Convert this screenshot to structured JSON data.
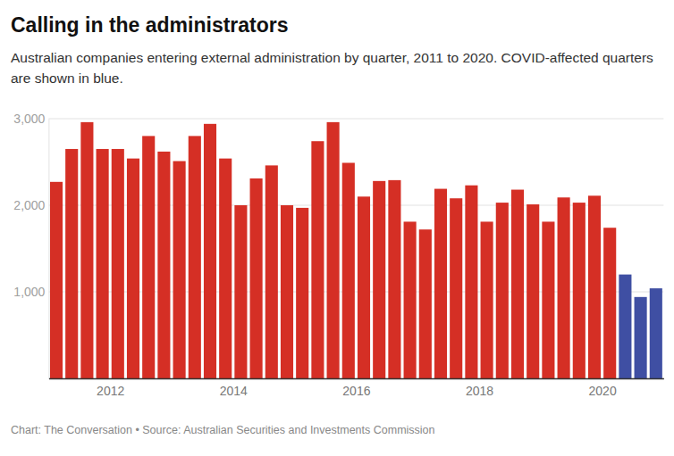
{
  "chart_data": {
    "type": "bar",
    "title": "Calling in the administrators",
    "subtitle": "Australian companies entering external administration by quarter, 2011 to 2020. COVID-affected quarters are shown in blue.",
    "source": "Chart: The Conversation • Source: Australian Securities and Investments Commission",
    "categories": [
      null,
      null,
      null,
      null,
      "2012",
      null,
      null,
      null,
      null,
      null,
      null,
      null,
      "2014",
      null,
      null,
      null,
      null,
      null,
      null,
      null,
      "2016",
      null,
      null,
      null,
      null,
      null,
      null,
      null,
      "2018",
      null,
      null,
      null,
      null,
      null,
      null,
      null,
      "2020",
      null,
      null,
      null
    ],
    "values": [
      2270,
      2650,
      2960,
      2650,
      2650,
      2540,
      2800,
      2620,
      2510,
      2800,
      2940,
      2540,
      2000,
      2310,
      2460,
      2000,
      1970,
      2740,
      2960,
      2490,
      2100,
      2280,
      2290,
      1810,
      1720,
      2190,
      2080,
      2230,
      1810,
      2030,
      2180,
      2010,
      1810,
      2090,
      2030,
      2110,
      1740,
      1200,
      940,
      1040
    ],
    "colors": [
      "#d52f25",
      "#d52f25",
      "#d52f25",
      "#d52f25",
      "#d52f25",
      "#d52f25",
      "#d52f25",
      "#d52f25",
      "#d52f25",
      "#d52f25",
      "#d52f25",
      "#d52f25",
      "#d52f25",
      "#d52f25",
      "#d52f25",
      "#d52f25",
      "#d52f25",
      "#d52f25",
      "#d52f25",
      "#d52f25",
      "#d52f25",
      "#d52f25",
      "#d52f25",
      "#d52f25",
      "#d52f25",
      "#d52f25",
      "#d52f25",
      "#d52f25",
      "#d52f25",
      "#d52f25",
      "#d52f25",
      "#d52f25",
      "#d52f25",
      "#d52f25",
      "#d52f25",
      "#d52f25",
      "#d52f25",
      "#3f4fa3",
      "#3f4fa3",
      "#3f4fa3"
    ],
    "ylim": [
      0,
      3000
    ],
    "yticks": [
      {
        "value": 1000,
        "label": "1,000"
      },
      {
        "value": 2000,
        "label": "2,000"
      },
      {
        "value": 3000,
        "label": "3,000"
      }
    ],
    "grid": true
  }
}
